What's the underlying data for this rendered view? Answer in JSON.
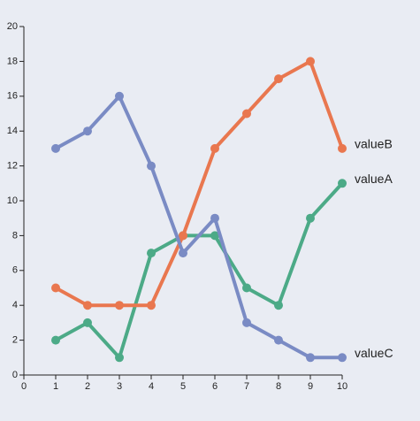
{
  "chart_data": {
    "type": "line",
    "x": [
      1,
      2,
      3,
      4,
      5,
      6,
      7,
      8,
      9,
      10
    ],
    "series": [
      {
        "name": "valueA",
        "color": "#4caa87",
        "values": [
          2,
          3,
          1,
          7,
          8,
          8,
          5,
          4,
          9,
          11
        ]
      },
      {
        "name": "valueB",
        "color": "#e9774f",
        "values": [
          5,
          4,
          4,
          4,
          8,
          13,
          15,
          17,
          18,
          13
        ]
      },
      {
        "name": "valueC",
        "color": "#7a8bc4",
        "values": [
          13,
          14,
          16,
          12,
          7,
          9,
          3,
          2,
          1,
          1
        ]
      }
    ],
    "xlim": [
      0,
      10
    ],
    "xticks": [
      0,
      1,
      2,
      3,
      4,
      5,
      6,
      7,
      8,
      9,
      10
    ],
    "ylim": [
      0,
      20
    ],
    "yticks": [
      0,
      2,
      4,
      6,
      8,
      10,
      12,
      14,
      16,
      18,
      20
    ]
  }
}
